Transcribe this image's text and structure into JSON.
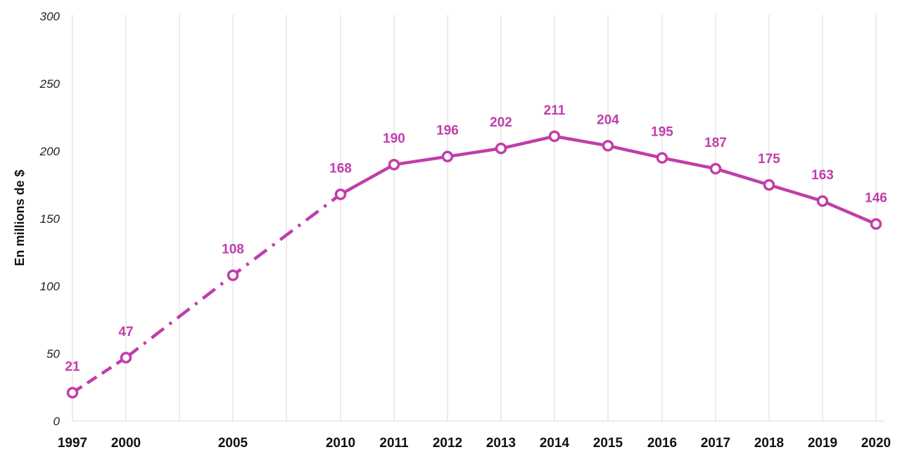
{
  "chart_data": {
    "type": "line",
    "title": "",
    "ylabel": "En millions de $",
    "xlabel": "",
    "ylim": [
      0,
      300
    ],
    "yticks": [
      0,
      50,
      100,
      150,
      200,
      250,
      300
    ],
    "x": [
      1997,
      2000,
      2005,
      2010,
      2011,
      2012,
      2013,
      2014,
      2015,
      2016,
      2017,
      2018,
      2019,
      2020
    ],
    "y": [
      21,
      47,
      108,
      168,
      190,
      196,
      202,
      211,
      204,
      195,
      187,
      175,
      163,
      146
    ],
    "data_labels": [
      "21",
      "47",
      "108",
      "168",
      "190",
      "196",
      "202",
      "211",
      "204",
      "195",
      "187",
      "175",
      "163",
      "146"
    ],
    "line_style_segments": [
      {
        "from": 1997,
        "to": 2000,
        "style": "dashed"
      },
      {
        "from": 2000,
        "to": 2010,
        "style": "dash-dot"
      },
      {
        "from": 2010,
        "to": 2020,
        "style": "solid"
      }
    ],
    "grid": "vertical",
    "legend": "none",
    "color": "#c13dab"
  }
}
